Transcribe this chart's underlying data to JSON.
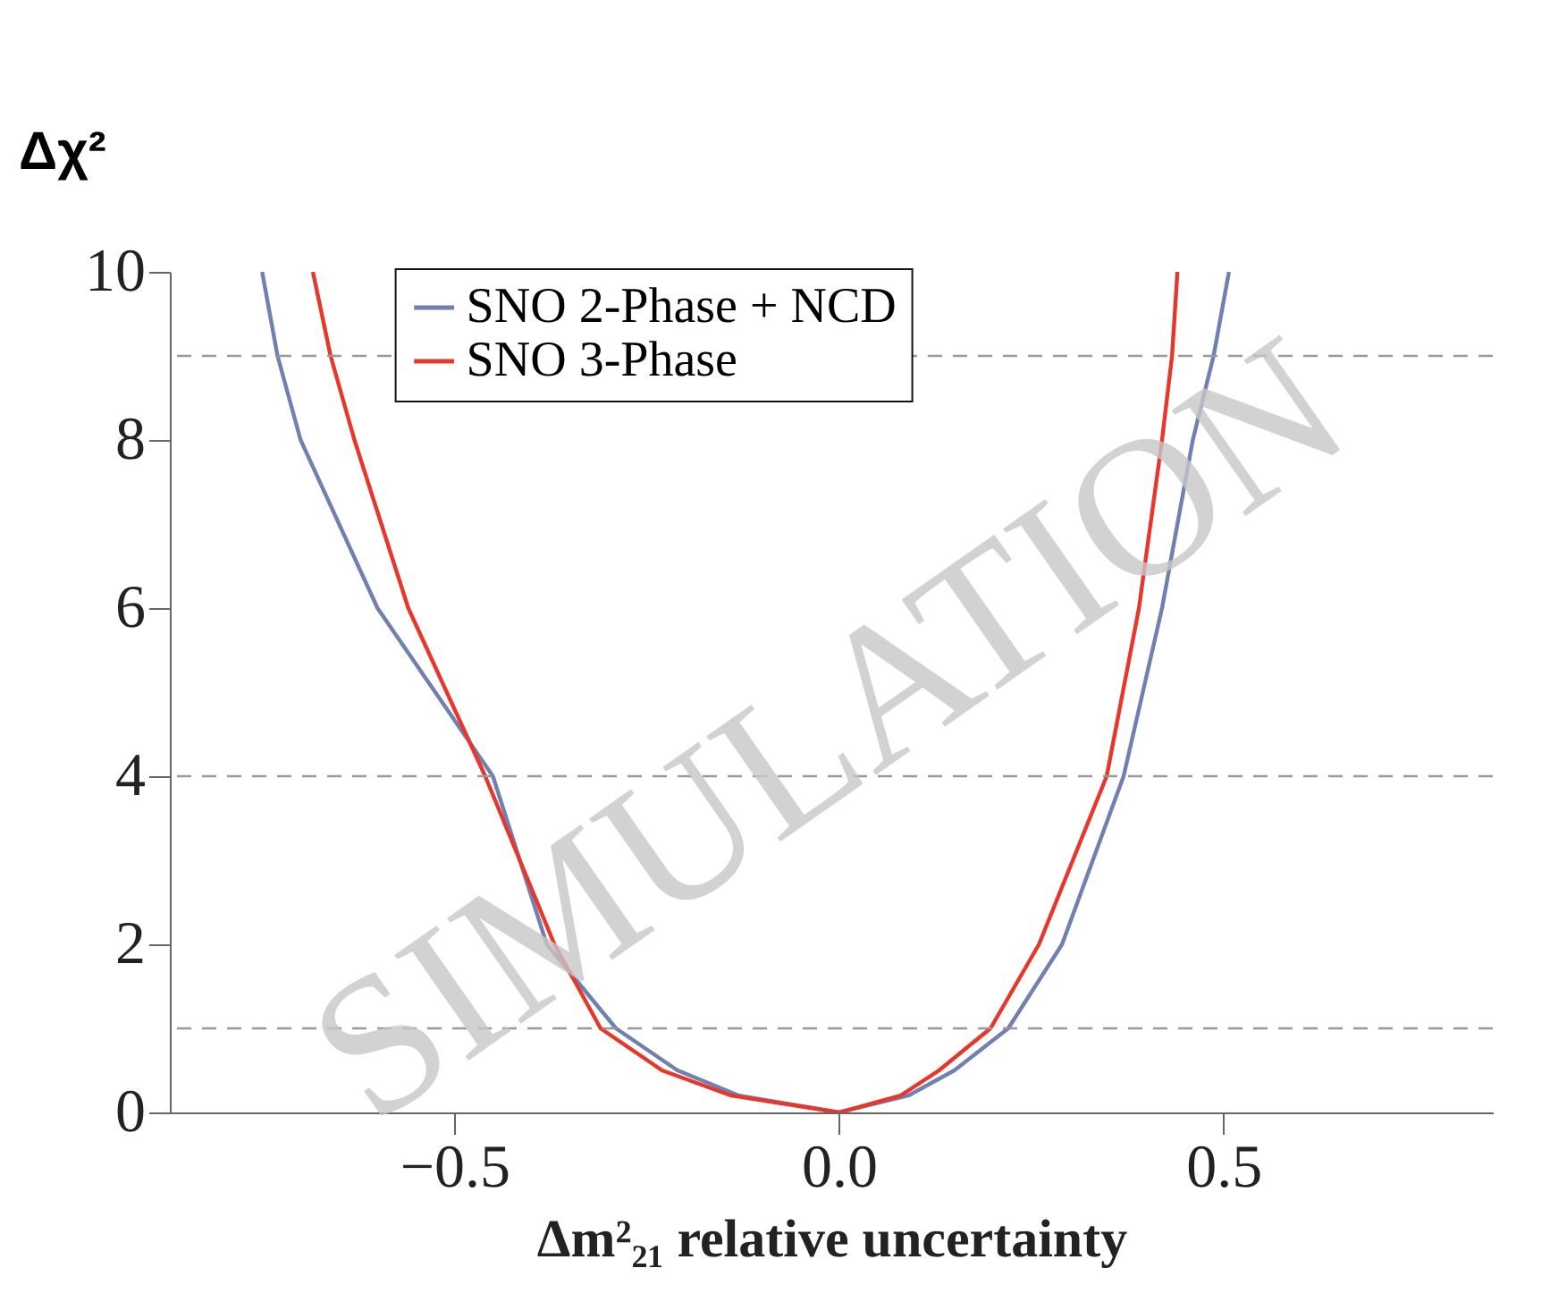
{
  "chart_data": {
    "type": "line",
    "xlabel": "Δm²₂₁ relative uncertainty",
    "ylabel": "Δχ²",
    "xlim": [
      -0.87,
      0.85
    ],
    "xticks": [
      {
        "value": -0.5,
        "label": "−0.5"
      },
      {
        "value": 0,
        "label": "0.0"
      },
      {
        "value": 0.5,
        "label": "0.5"
      }
    ],
    "ylim": [
      0,
      10
    ],
    "yticks": [
      0,
      2,
      4,
      6,
      8,
      10
    ],
    "series": [
      {
        "name": "SNO 2-Phase + NCD",
        "color": "#7080b0",
        "x": [
          -0.75,
          -0.73,
          -0.7,
          -0.6,
          -0.45,
          -0.38,
          -0.29,
          -0.21,
          -0.13,
          0,
          0.09,
          0.15,
          0.22,
          0.29,
          0.37,
          0.42,
          0.46,
          0.487,
          0.507
        ],
        "values": [
          10,
          9,
          8,
          6,
          4,
          2,
          1,
          0.5,
          0.2,
          0,
          0.2,
          0.5,
          1,
          2,
          4,
          6,
          8,
          9,
          10
        ]
      },
      {
        "name": "SNO 3-Phase",
        "color": "#e8362a",
        "x": [
          -0.684,
          -0.661,
          -0.63,
          -0.56,
          -0.46,
          -0.37,
          -0.31,
          -0.23,
          -0.14,
          0,
          0.08,
          0.13,
          0.197,
          0.26,
          0.348,
          0.39,
          0.42,
          0.433,
          0.44
        ],
        "values": [
          10,
          9,
          8,
          6,
          4,
          2,
          1,
          0.5,
          0.2,
          0,
          0.2,
          0.5,
          1,
          2,
          4,
          6,
          8,
          9,
          10
        ]
      }
    ],
    "ref_lines": [
      {
        "axis": "y",
        "value": 1,
        "line_style": "dashed",
        "color": "#999999"
      },
      {
        "axis": "y",
        "value": 4,
        "line_style": "dashed",
        "color": "#999999"
      },
      {
        "axis": "y",
        "value": 9,
        "line_style": "dashed",
        "color": "#999999"
      }
    ],
    "annotations": [
      "SIMULATION"
    ],
    "legend": "top",
    "grid": false,
    "marker": "none",
    "line_style": "solid"
  }
}
